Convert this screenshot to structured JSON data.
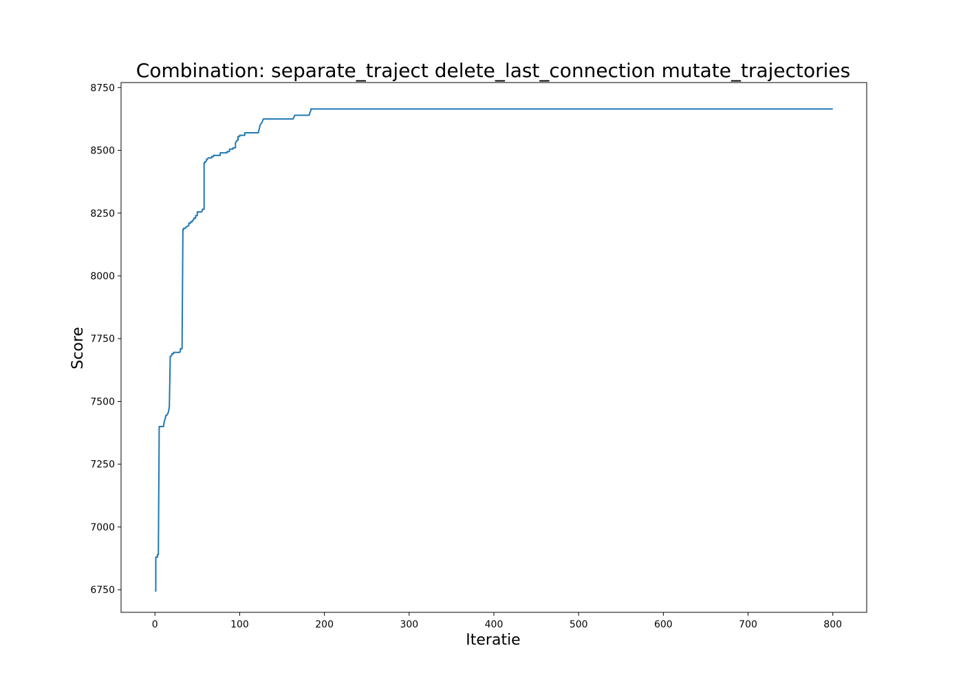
{
  "chart_data": {
    "type": "line",
    "title": "Combination: separate_traject delete_last_connection mutate_trajectories",
    "xlabel": "Iteratie",
    "ylabel": "Score",
    "xlim": [
      -40,
      840
    ],
    "ylim": [
      6660,
      8770
    ],
    "xticks": [
      0,
      100,
      200,
      300,
      400,
      500,
      600,
      700,
      800
    ],
    "yticks": [
      6750,
      7000,
      7250,
      7500,
      7750,
      8000,
      8250,
      8500,
      8750
    ],
    "grid": false,
    "line_color": "#1f77b4",
    "series": [
      {
        "x": [
          0,
          1,
          1,
          3,
          3,
          4,
          5,
          5,
          10,
          11,
          12,
          13,
          14,
          15,
          16,
          17,
          18,
          18,
          19,
          20,
          20,
          22,
          22,
          29,
          30,
          30,
          32,
          32,
          33,
          34,
          34,
          36,
          37,
          37,
          40,
          40,
          42,
          42,
          44,
          44,
          46,
          46,
          48,
          48,
          50,
          50,
          55,
          56,
          56,
          58,
          58,
          59,
          59,
          60,
          61,
          61,
          62,
          63,
          63,
          67,
          67,
          69,
          69,
          77,
          77,
          85,
          85,
          88,
          88,
          92,
          92,
          95,
          95,
          97,
          98,
          98,
          100,
          100,
          106,
          106,
          122,
          124,
          124,
          126,
          126,
          128,
          130,
          130,
          163,
          165,
          165,
          182,
          184,
          184,
          800
        ],
        "y": [
          6745,
          6745,
          6880,
          6880,
          6890,
          6890,
          7390,
          7400,
          7400,
          7420,
          7430,
          7445,
          7445,
          7450,
          7460,
          7480,
          7675,
          7680,
          7680,
          7685,
          7690,
          7690,
          7695,
          7695,
          7700,
          7710,
          7710,
          7715,
          8185,
          8185,
          8190,
          8190,
          8195,
          8195,
          8200,
          8210,
          8210,
          8215,
          8215,
          8220,
          8225,
          8230,
          8230,
          8240,
          8240,
          8255,
          8255,
          8260,
          8265,
          8265,
          8450,
          8450,
          8455,
          8455,
          8460,
          8465,
          8465,
          8470,
          8470,
          8470,
          8475,
          8475,
          8480,
          8480,
          8490,
          8490,
          8495,
          8495,
          8505,
          8505,
          8510,
          8510,
          8530,
          8540,
          8540,
          8555,
          8555,
          8560,
          8560,
          8570,
          8570,
          8600,
          8600,
          8610,
          8610,
          8625,
          8625,
          8625,
          8625,
          8640,
          8640,
          8640,
          8660,
          8665,
          8665
        ]
      }
    ]
  }
}
